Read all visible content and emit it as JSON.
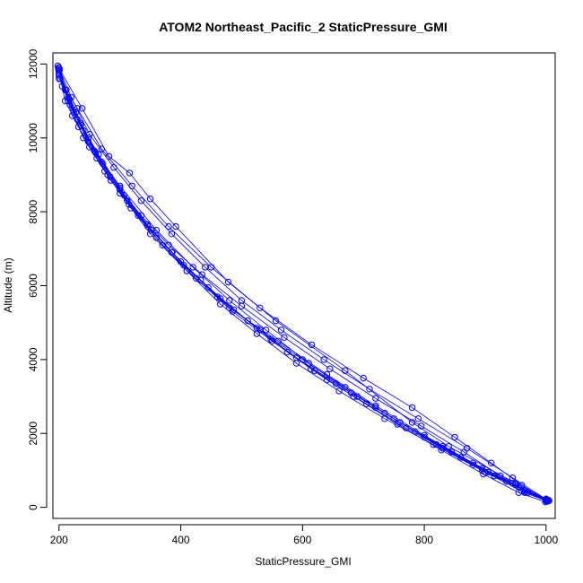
{
  "chart_data": {
    "type": "scatter",
    "title": "ATOM2 Northeast_Pacific_2 StaticPressure_GMI",
    "xlabel": "StaticPressure_GMI",
    "ylabel": "Altitude (m)",
    "xlim": [
      190,
      1015
    ],
    "ylim": [
      -300,
      12300
    ],
    "xticks": [
      200,
      400,
      600,
      800,
      1000
    ],
    "yticks": [
      0,
      2000,
      4000,
      6000,
      8000,
      10000,
      12000
    ],
    "grid": false,
    "legend": "none",
    "color": "#0000ff",
    "marker": "open-circle",
    "lines_connected": true,
    "series": [
      {
        "x": [
          1003,
          960,
          900,
          820,
          750,
          680,
          610,
          540,
          480,
          420,
          360,
          300,
          260,
          230,
          210,
          200
        ],
        "y": [
          200,
          450,
          950,
          1700,
          2400,
          3100,
          3900,
          4800,
          5600,
          6500,
          7500,
          8700,
          9600,
          10500,
          11300,
          11900
        ]
      },
      {
        "x": [
          200,
          215,
          240,
          275,
          315,
          360,
          410,
          465,
          525,
          590,
          660,
          735,
          815,
          895,
          965,
          1000
        ],
        "y": [
          11800,
          11000,
          10000,
          9100,
          8200,
          7300,
          6400,
          5500,
          4700,
          3900,
          3150,
          2400,
          1700,
          1000,
          400,
          180
        ]
      },
      {
        "x": [
          1005,
          955,
          905,
          845,
          785,
          720,
          655,
          590,
          525,
          460,
          400,
          345,
          300,
          265,
          235,
          215,
          200
        ],
        "y": [
          180,
          550,
          950,
          1500,
          2050,
          2700,
          3350,
          4050,
          4850,
          5700,
          6650,
          7650,
          8650,
          9550,
          10400,
          11100,
          11700
        ]
      },
      {
        "x": [
          198,
          220,
          250,
          290,
          335,
          385,
          440,
          500,
          565,
          635,
          710,
          790,
          870,
          945,
          1000
        ],
        "y": [
          11950,
          11100,
          10100,
          9200,
          8300,
          7400,
          6500,
          5600,
          4800,
          4000,
          3200,
          2400,
          1600,
          800,
          220
        ]
      },
      {
        "x": [
          1002,
          970,
          935,
          880,
          830,
          770,
          705,
          640,
          575,
          510,
          445,
          385,
          330,
          285,
          250,
          222,
          200
        ],
        "y": [
          160,
          400,
          700,
          1150,
          1600,
          2150,
          2800,
          3450,
          4200,
          5050,
          5950,
          6900,
          7900,
          8850,
          9750,
          10600,
          11750
        ]
      },
      {
        "x": [
          200,
          230,
          270,
          320,
          380,
          450,
          530,
          615,
          700,
          780,
          850,
          910,
          960,
          1000
        ],
        "y": [
          11600,
          10800,
          9700,
          8700,
          7600,
          6500,
          5400,
          4400,
          3500,
          2700,
          1900,
          1200,
          600,
          200
        ]
      },
      {
        "x": [
          1000,
          945,
          880,
          800,
          720,
          640,
          560,
          480,
          410,
          350,
          300,
          262,
          232,
          210,
          199
        ],
        "y": [
          200,
          650,
          1200,
          1950,
          2750,
          3600,
          4500,
          5400,
          6400,
          7400,
          8500,
          9450,
          10300,
          11000,
          11850
        ]
      },
      {
        "x": [
          199,
          212,
          228,
          248,
          272,
          300,
          335,
          380,
          435,
          500,
          570,
          645,
          720,
          795,
          865,
          925,
          970,
          1002
        ],
        "y": [
          11900,
          11300,
          10700,
          10000,
          9300,
          8600,
          7900,
          7100,
          6300,
          5450,
          4600,
          3750,
          2950,
          2200,
          1500,
          850,
          400,
          170
        ]
      },
      {
        "x": [
          1004,
          965,
          915,
          860,
          800,
          735,
          670,
          600,
          530,
          465,
          405,
          352,
          307,
          270,
          240,
          218,
          202
        ],
        "y": [
          190,
          450,
          850,
          1350,
          1900,
          2550,
          3250,
          4000,
          4800,
          5650,
          6550,
          7500,
          8450,
          9350,
          10200,
          10900,
          11600
        ]
      },
      {
        "x": [
          201,
          238,
          282,
          316,
          350,
          392,
          478,
          556,
          670,
          780,
          840,
          950,
          1000
        ],
        "y": [
          11850,
          10800,
          9500,
          9050,
          8350,
          7600,
          6100,
          5050,
          3700,
          2300,
          1650,
          650,
          230
        ]
      },
      {
        "x": [
          1001,
          950,
          895,
          830,
          760,
          690,
          620,
          550,
          485,
          425,
          370,
          318,
          280,
          248,
          224,
          205
        ],
        "y": [
          210,
          600,
          1050,
          1650,
          2300,
          3000,
          3700,
          4500,
          5300,
          6200,
          7100,
          8100,
          9000,
          9900,
          10700,
          11400
        ]
      },
      {
        "x": [
          200,
          217,
          236,
          258,
          284,
          312,
          346,
          386,
          433,
          487,
          548,
          614,
          684,
          756,
          828,
          897,
          955,
          999
        ],
        "y": [
          11700,
          11050,
          10350,
          9650,
          8950,
          8300,
          7600,
          6900,
          6150,
          5350,
          4550,
          3750,
          3000,
          2250,
          1550,
          900,
          400,
          150
        ]
      }
    ]
  }
}
